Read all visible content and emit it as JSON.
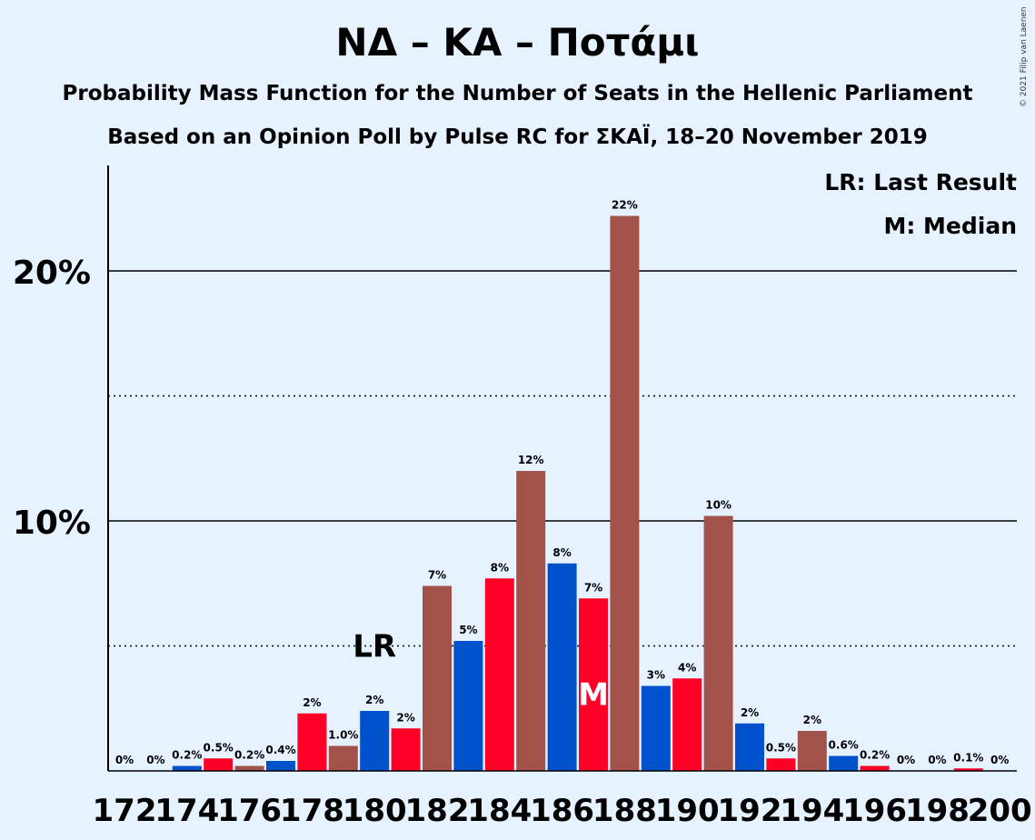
{
  "title": "ΝΔ – ΚΑ – Ποτάμι",
  "subtitle1": "Probability Mass Function for the Number of Seats in the Hellenic Parliament",
  "subtitle2": "Based on an Opinion Poll by Pulse RC for ΣΚΑΪ, 18–20 November 2019",
  "copyright": "© 2021 Filip van Laenen",
  "legend": {
    "lr": "LR: Last Result",
    "m": "M: Median"
  },
  "markers": {
    "lr_label": "LR",
    "lr_seat": 180,
    "m_label": "M",
    "m_seat": 187
  },
  "colors": {
    "blue": "#0052cc",
    "red": "#ff0026",
    "brown": "#a3524a",
    "background": "#e6f2ff"
  },
  "chart_data": {
    "type": "bar",
    "x": [
      172,
      173,
      174,
      175,
      176,
      177,
      178,
      179,
      180,
      181,
      182,
      183,
      184,
      185,
      186,
      187,
      188,
      189,
      190,
      191,
      192,
      193,
      194,
      195,
      196,
      197,
      198,
      199,
      200
    ],
    "values": [
      0,
      0,
      0.2,
      0.5,
      0.2,
      0.4,
      2.3,
      1.0,
      2.4,
      1.7,
      7.4,
      5.2,
      7.7,
      12.0,
      8.3,
      6.9,
      22.2,
      3.4,
      3.7,
      10.2,
      1.9,
      0.5,
      1.6,
      0.6,
      0.2,
      0,
      0,
      0.1,
      0
    ],
    "labels": [
      "0%",
      "0%",
      "0.2%",
      "0.5%",
      "0.2%",
      "0.4%",
      "2%",
      "1.0%",
      "2%",
      "2%",
      "7%",
      "5%",
      "8%",
      "12%",
      "8%",
      "7%",
      "22%",
      "3%",
      "4%",
      "10%",
      "2%",
      "0.5%",
      "2%",
      "0.6%",
      "0.2%",
      "0%",
      "0%",
      "0.1%",
      "0%"
    ],
    "bar_colors": [
      "blue",
      "red",
      "blue",
      "red",
      "brown",
      "blue",
      "red",
      "brown",
      "blue",
      "red",
      "brown",
      "blue",
      "red",
      "brown",
      "blue",
      "red",
      "brown",
      "blue",
      "red",
      "brown",
      "blue",
      "red",
      "brown",
      "blue",
      "red",
      "brown",
      "blue",
      "red",
      "brown"
    ],
    "x_tick_labels": [
      "172",
      "174",
      "176",
      "178",
      "180",
      "182",
      "184",
      "186",
      "188",
      "190",
      "192",
      "194",
      "196",
      "198",
      "200"
    ],
    "y_tick_labels": [
      "10%",
      "20%"
    ],
    "ylim": [
      0,
      24
    ],
    "gridlines_solid": [
      10,
      20
    ],
    "gridlines_dotted": [
      5,
      15
    ]
  }
}
